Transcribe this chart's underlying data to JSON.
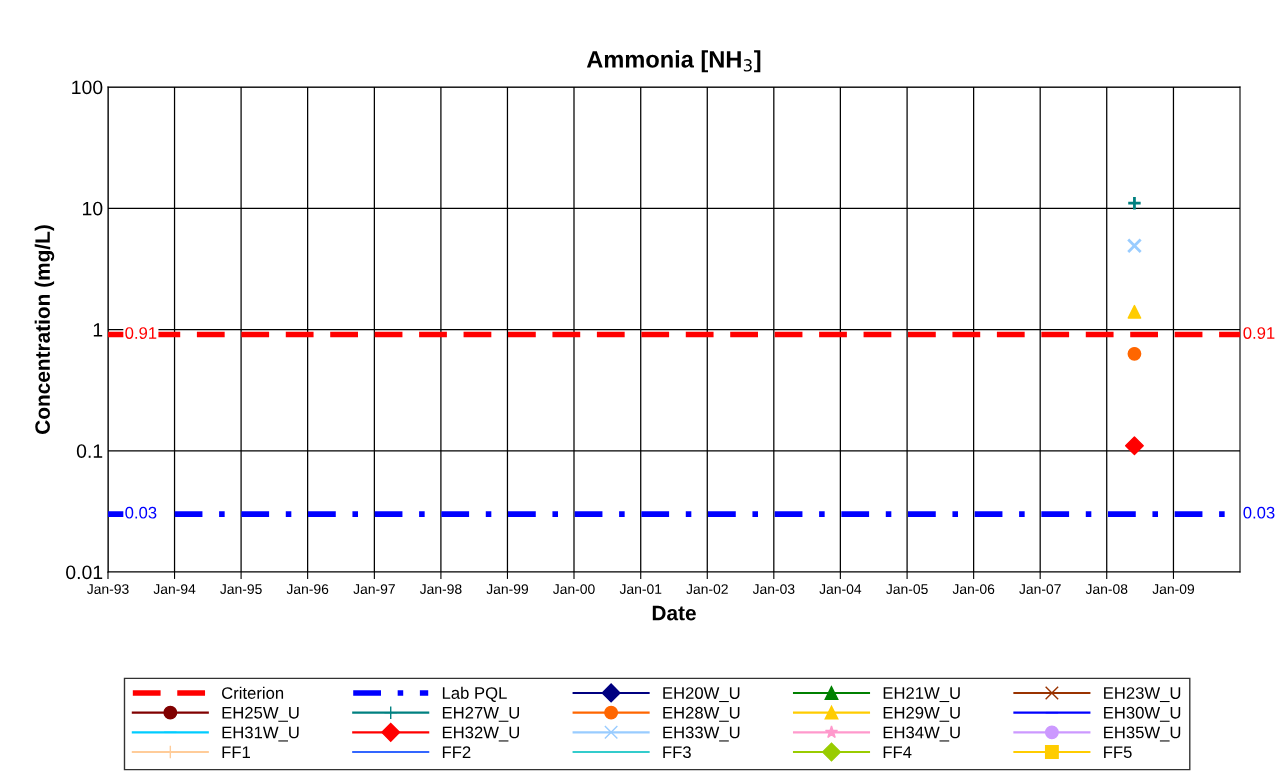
{
  "chart_data": {
    "type": "scatter",
    "title": "Ammonia [NH$_{3}$]",
    "xlabel": "Date",
    "ylabel": "Concentration (mg/L)",
    "log": "y",
    "grid": true,
    "legend": "bottom",
    "xlim": [
      "1993-01",
      "2010-01"
    ],
    "xticks": [
      {
        "value": "1993-01",
        "label": "Jan-93"
      },
      {
        "value": "1994-01",
        "label": "Jan-94"
      },
      {
        "value": "1995-01",
        "label": "Jan-95"
      },
      {
        "value": "1996-01",
        "label": "Jan-96"
      },
      {
        "value": "1997-01",
        "label": "Jan-97"
      },
      {
        "value": "1998-01",
        "label": "Jan-98"
      },
      {
        "value": "1999-01",
        "label": "Jan-99"
      },
      {
        "value": "2000-01",
        "label": "Jan-00"
      },
      {
        "value": "2001-01",
        "label": "Jan-01"
      },
      {
        "value": "2002-01",
        "label": "Jan-02"
      },
      {
        "value": "2003-01",
        "label": "Jan-03"
      },
      {
        "value": "2004-01",
        "label": "Jan-04"
      },
      {
        "value": "2005-01",
        "label": "Jan-05"
      },
      {
        "value": "2006-01",
        "label": "Jan-06"
      },
      {
        "value": "2007-01",
        "label": "Jan-07"
      },
      {
        "value": "2008-01",
        "label": "Jan-08"
      },
      {
        "value": "2009-01",
        "label": "Jan-09"
      }
    ],
    "ylim": [
      0.01,
      100
    ],
    "yticks": [
      0.01,
      0.1,
      1,
      10,
      100
    ],
    "series": [
      {
        "name": "Criterion",
        "type": "line",
        "color": "#ff0000",
        "line_style": "dashed",
        "marker": "none",
        "x": [
          "1993-01",
          "2010-01"
        ],
        "values": [
          0.91,
          0.91
        ],
        "value_labels": [
          "0.91",
          "0.91"
        ]
      },
      {
        "name": "Lab PQL",
        "type": "line",
        "color": "#0000ff",
        "line_style": "dashdot",
        "marker": "none",
        "x": [
          "1993-01",
          "2010-01"
        ],
        "values": [
          0.03,
          0.03
        ],
        "value_labels": [
          "0.03",
          "0.03"
        ]
      },
      {
        "name": "EH20W_U",
        "color": "#000080",
        "marker": "diamond"
      },
      {
        "name": "EH21W_U",
        "color": "#008000",
        "marker": "triangle"
      },
      {
        "name": "EH23W_U",
        "color": "#993300",
        "marker": "cross"
      },
      {
        "name": "EH25W_U",
        "color": "#800000",
        "marker": "circle"
      },
      {
        "name": "EH27W_U",
        "color": "#008080",
        "marker": "plus",
        "x": [
          "2008-06"
        ],
        "values": [
          11
        ]
      },
      {
        "name": "EH28W_U",
        "color": "#ff6600",
        "marker": "circle",
        "x": [
          "2008-06"
        ],
        "values": [
          0.63
        ]
      },
      {
        "name": "EH29W_U",
        "color": "#ffcc00",
        "marker": "triangle",
        "x": [
          "2008-06"
        ],
        "values": [
          1.4
        ]
      },
      {
        "name": "EH30W_U",
        "color": "#0000ff",
        "marker": "dash"
      },
      {
        "name": "EH31W_U",
        "color": "#00ccff",
        "marker": "dash"
      },
      {
        "name": "EH32W_U",
        "color": "#ff0000",
        "marker": "diamond",
        "x": [
          "2008-06"
        ],
        "values": [
          0.11
        ]
      },
      {
        "name": "EH33W_U",
        "color": "#99ccff",
        "marker": "cross",
        "x": [
          "2008-06"
        ],
        "values": [
          4.9
        ]
      },
      {
        "name": "EH34W_U",
        "color": "#ff99cc",
        "marker": "star"
      },
      {
        "name": "EH35W_U",
        "color": "#cc99ff",
        "marker": "circle"
      },
      {
        "name": "FF1",
        "color": "#ffcc99",
        "marker": "plus"
      },
      {
        "name": "FF2",
        "color": "#3366ff",
        "marker": "dash"
      },
      {
        "name": "FF3",
        "color": "#33cccc",
        "marker": "dash"
      },
      {
        "name": "FF4",
        "color": "#99cc00",
        "marker": "diamond"
      },
      {
        "name": "FF5",
        "color": "#ffcc00",
        "marker": "square"
      }
    ]
  }
}
